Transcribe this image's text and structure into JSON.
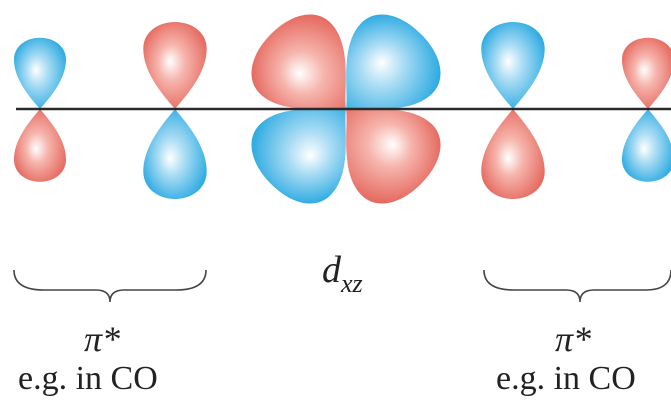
{
  "colors": {
    "positive_lobe": "#e8665c",
    "negative_lobe": "#23a7e0",
    "axis": "#2a2a2a",
    "brace": "#444444",
    "text": "#222222"
  },
  "left_orbital": {
    "label": "π*",
    "note": "e.g. in CO"
  },
  "center_orbital": {
    "label_main": "d",
    "label_sub": "xz"
  },
  "right_orbital": {
    "label": "π*",
    "note": "e.g. in CO"
  }
}
